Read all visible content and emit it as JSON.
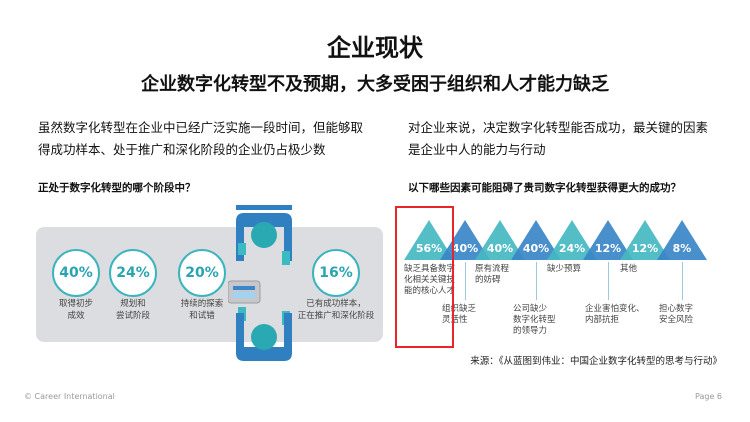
{
  "title": "企业现状",
  "subtitle": "企业数字化转型不及预期，大多受困于组织和人才能力缺乏",
  "left": {
    "para_lines": [
      "虽然数字化转型在企业中已经广泛实施一段时间，但能够取",
      "得成功样本、处于推广和深化阶段的企业仍占极少数"
    ],
    "question": "正处于数字化转型的哪个阶段中？",
    "stages": [
      {
        "value": "40%",
        "label": [
          "取得初步",
          "成效"
        ]
      },
      {
        "value": "24%",
        "label": [
          "规划和",
          "尝试阶段"
        ]
      },
      {
        "value": "20%",
        "label": [
          "持续的探索",
          "和试错"
        ]
      },
      {
        "value": "16%",
        "label": [
          "已有成功样本，",
          "正在推广和深化阶段"
        ]
      }
    ]
  },
  "right": {
    "para_lines": [
      "对企业来说，决定数字化转型能否成功，最关键的因素",
      "是企业中人的能力与行动"
    ],
    "question": "以下哪些因素可能阻碍了贵司数字化转型获得更大的成功？",
    "factors": [
      {
        "value": "56%",
        "label": [
          "缺乏具备数字",
          "化相关关键技",
          "能的核心人才"
        ]
      },
      {
        "value": "40%",
        "label": [
          "组织缺乏",
          "灵活性"
        ]
      },
      {
        "value": "40%",
        "label": [
          "原有流程",
          "的妨碍"
        ]
      },
      {
        "value": "40%",
        "label": [
          "公司缺少",
          "数字化转型",
          "的领导力"
        ]
      },
      {
        "value": "24%",
        "label": [
          "缺少预算"
        ]
      },
      {
        "value": "12%",
        "label": [
          "企业害怕变化、",
          "内部抗拒"
        ]
      },
      {
        "value": "12%",
        "label": [
          "其他"
        ]
      },
      {
        "value": "8%",
        "label": [
          "担心数字",
          "安全风险"
        ]
      }
    ],
    "source": "来源：《从蓝图到伟业：中国企业数字化转型的思考与行动》"
  },
  "colors": {
    "teal": "#45b9c2",
    "blue": "#3a86c8",
    "highlight": "#e8262a",
    "panel": "#dcdde0"
  },
  "footer": {
    "copyright": "© Career International",
    "page": "Page 6"
  }
}
